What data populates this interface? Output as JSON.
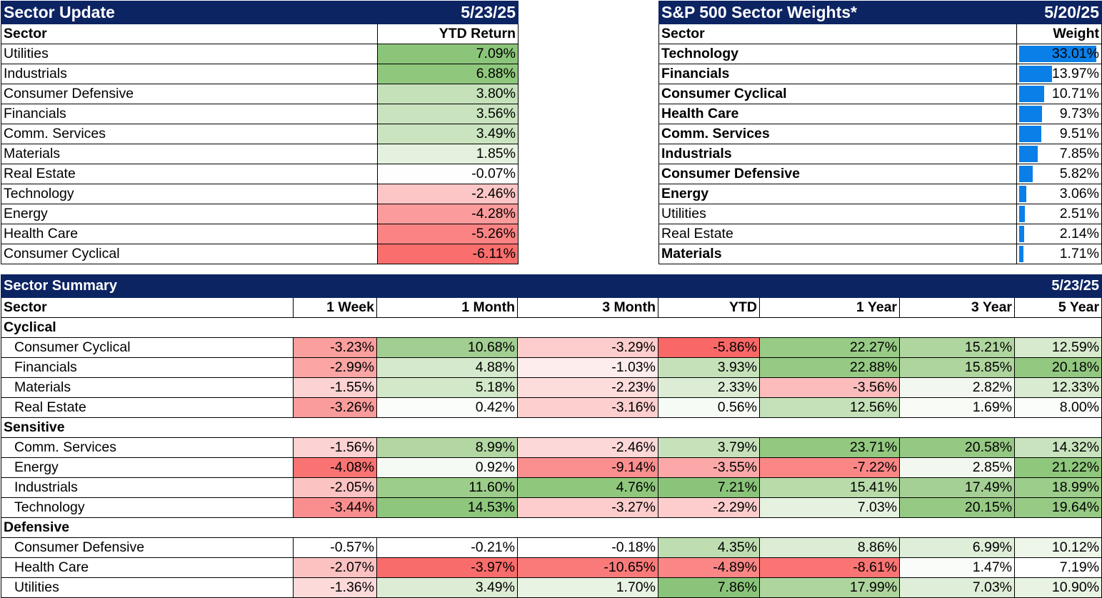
{
  "sector_update": {
    "title": "Sector Update",
    "date": "5/23/25",
    "col_sector": "Sector",
    "col_return": "YTD Return",
    "rows": [
      {
        "sector": "Utilities",
        "value": "7.09%",
        "color": "#8bc57a"
      },
      {
        "sector": "Industrials",
        "value": "6.88%",
        "color": "#8fc77d"
      },
      {
        "sector": "Consumer Defensive",
        "value": "3.80%",
        "color": "#c5e1b9"
      },
      {
        "sector": "Financials",
        "value": "3.56%",
        "color": "#c9e3be"
      },
      {
        "sector": "Comm. Services",
        "value": "3.49%",
        "color": "#cae4bf"
      },
      {
        "sector": "Materials",
        "value": "1.85%",
        "color": "#e5f1df"
      },
      {
        "sector": "Real Estate",
        "value": "-0.07%",
        "color": "#fefefe"
      },
      {
        "sector": "Technology",
        "value": "-2.46%",
        "color": "#fdc6c6"
      },
      {
        "sector": "Energy",
        "value": "-4.28%",
        "color": "#fc9b9b"
      },
      {
        "sector": "Health Care",
        "value": "-5.26%",
        "color": "#fb8383"
      },
      {
        "sector": "Consumer Cyclical",
        "value": "-6.11%",
        "color": "#fa6e6e"
      }
    ]
  },
  "sector_weights": {
    "title": "S&P 500 Sector Weights*",
    "date": "5/20/25",
    "col_sector": "Sector",
    "col_weight": "Weight",
    "bar_color": "#0a7fe8",
    "rows": [
      {
        "sector": "Technology",
        "value": "33.01%",
        "weight": 33.01,
        "bold": true
      },
      {
        "sector": "Financials",
        "value": "13.97%",
        "weight": 13.97,
        "bold": true
      },
      {
        "sector": "Consumer Cyclical",
        "value": "10.71%",
        "weight": 10.71,
        "bold": true
      },
      {
        "sector": "Health Care",
        "value": "9.73%",
        "weight": 9.73,
        "bold": true
      },
      {
        "sector": "Comm. Services",
        "value": "9.51%",
        "weight": 9.51,
        "bold": true
      },
      {
        "sector": "Industrials",
        "value": "7.85%",
        "weight": 7.85,
        "bold": true
      },
      {
        "sector": "Consumer Defensive",
        "value": "5.82%",
        "weight": 5.82,
        "bold": true
      },
      {
        "sector": "Energy",
        "value": "3.06%",
        "weight": 3.06,
        "bold": true
      },
      {
        "sector": "Utilities",
        "value": "2.51%",
        "weight": 2.51,
        "bold": false
      },
      {
        "sector": "Real Estate",
        "value": "2.14%",
        "weight": 2.14,
        "bold": false
      },
      {
        "sector": "Materials",
        "value": "1.71%",
        "weight": 1.71,
        "bold": true
      }
    ]
  },
  "sector_summary": {
    "title": "Sector Summary",
    "date": "5/23/25",
    "columns": [
      "Sector",
      "1 Week",
      "1 Month",
      "3 Month",
      "YTD",
      "1 Year",
      "3 Year",
      "5 Year"
    ],
    "groups": [
      {
        "name": "Cyclical",
        "rows": [
          {
            "sector": "Consumer Cyclical",
            "cells": [
              {
                "v": "-3.23%",
                "c": "#fb9e9e"
              },
              {
                "v": "10.68%",
                "c": "#a2cf91"
              },
              {
                "v": "-3.29%",
                "c": "#fdcdcd"
              },
              {
                "v": "-5.86%",
                "c": "#fa6767"
              },
              {
                "v": "22.27%",
                "c": "#98cb86"
              },
              {
                "v": "15.21%",
                "c": "#b0d69f"
              },
              {
                "v": "12.59%",
                "c": "#d7eacd"
              }
            ]
          },
          {
            "sector": "Financials",
            "cells": [
              {
                "v": "-2.99%",
                "c": "#fba5a5"
              },
              {
                "v": "4.88%",
                "c": "#d5e9cc"
              },
              {
                "v": "-1.03%",
                "c": "#feeded"
              },
              {
                "v": "3.93%",
                "c": "#c5e1b9"
              },
              {
                "v": "22.88%",
                "c": "#96ca84"
              },
              {
                "v": "15.85%",
                "c": "#aed59d"
              },
              {
                "v": "20.18%",
                "c": "#93c881"
              }
            ]
          },
          {
            "sector": "Materials",
            "cells": [
              {
                "v": "-1.55%",
                "c": "#fdd2d2"
              },
              {
                "v": "5.18%",
                "c": "#d2e8c8"
              },
              {
                "v": "-2.23%",
                "c": "#fddcdc"
              },
              {
                "v": "2.33%",
                "c": "#ddedd5"
              },
              {
                "v": "-3.56%",
                "c": "#fcbcbc"
              },
              {
                "v": "2.82%",
                "c": "#f2f8ef"
              },
              {
                "v": "12.33%",
                "c": "#d9ebd0"
              }
            ]
          },
          {
            "sector": "Real Estate",
            "cells": [
              {
                "v": "-3.26%",
                "c": "#fb9c9c"
              },
              {
                "v": "0.42%",
                "c": "#fbfdfa"
              },
              {
                "v": "-3.16%",
                "c": "#fdcfcf"
              },
              {
                "v": "0.56%",
                "c": "#f7fbf5"
              },
              {
                "v": "12.56%",
                "c": "#c5e1b9"
              },
              {
                "v": "1.69%",
                "c": "#f8fbf6"
              },
              {
                "v": "8.00%",
                "c": "#fbfdfa"
              }
            ]
          }
        ]
      },
      {
        "name": "Sensitive",
        "rows": [
          {
            "sector": "Comm. Services",
            "cells": [
              {
                "v": "-1.56%",
                "c": "#fdd2d2"
              },
              {
                "v": "8.99%",
                "c": "#b2d7a2"
              },
              {
                "v": "-2.46%",
                "c": "#fdd8d8"
              },
              {
                "v": "3.79%",
                "c": "#c7e2bb"
              },
              {
                "v": "23.71%",
                "c": "#93c881"
              },
              {
                "v": "20.58%",
                "c": "#95c983"
              },
              {
                "v": "14.32%",
                "c": "#c9e3be"
              }
            ]
          },
          {
            "sector": "Energy",
            "cells": [
              {
                "v": "-4.08%",
                "c": "#fa7373"
              },
              {
                "v": "0.92%",
                "c": "#f6faf4"
              },
              {
                "v": "-9.14%",
                "c": "#fb8e8e"
              },
              {
                "v": "-3.55%",
                "c": "#fca8a8"
              },
              {
                "v": "-7.22%",
                "c": "#fb8686"
              },
              {
                "v": "2.85%",
                "c": "#f2f8ef"
              },
              {
                "v": "21.22%",
                "c": "#8fc77d"
              }
            ]
          },
          {
            "sector": "Industrials",
            "cells": [
              {
                "v": "-2.05%",
                "c": "#fcc3c3"
              },
              {
                "v": "11.60%",
                "c": "#9ccd8a"
              },
              {
                "v": "4.76%",
                "c": "#8fc77d"
              },
              {
                "v": "7.21%",
                "c": "#8ac47a"
              },
              {
                "v": "15.41%",
                "c": "#b8dba9"
              },
              {
                "v": "17.49%",
                "c": "#a5d095"
              },
              {
                "v": "18.99%",
                "c": "#9ccd8a"
              }
            ]
          },
          {
            "sector": "Technology",
            "cells": [
              {
                "v": "-3.44%",
                "c": "#fa8e8e"
              },
              {
                "v": "14.53%",
                "c": "#8dc67c"
              },
              {
                "v": "-3.27%",
                "c": "#fdcdcd"
              },
              {
                "v": "-2.29%",
                "c": "#fdcdcd"
              },
              {
                "v": "7.03%",
                "c": "#e6f2e0"
              },
              {
                "v": "20.15%",
                "c": "#96ca84"
              },
              {
                "v": "19.64%",
                "c": "#97ca85"
              }
            ]
          }
        ]
      },
      {
        "name": "Defensive",
        "rows": [
          {
            "sector": "Consumer Defensive",
            "cells": [
              {
                "v": "-0.57%",
                "c": "#ffffff"
              },
              {
                "v": "-0.21%",
                "c": "#ffffff"
              },
              {
                "v": "-0.18%",
                "c": "#ffffff"
              },
              {
                "v": "4.35%",
                "c": "#bedeb1"
              },
              {
                "v": "8.86%",
                "c": "#ddedd5"
              },
              {
                "v": "6.99%",
                "c": "#dfeed8"
              },
              {
                "v": "10.12%",
                "c": "#eef6ea"
              }
            ]
          },
          {
            "sector": "Health Care",
            "cells": [
              {
                "v": "-2.07%",
                "c": "#fcc2c2"
              },
              {
                "v": "-3.97%",
                "c": "#f96c6c"
              },
              {
                "v": "-10.65%",
                "c": "#fa7a7a"
              },
              {
                "v": "-4.89%",
                "c": "#fb8686"
              },
              {
                "v": "-8.61%",
                "c": "#fa7474"
              },
              {
                "v": "1.47%",
                "c": "#fafcf9"
              },
              {
                "v": "7.19%",
                "c": "#ffffff"
              }
            ]
          },
          {
            "sector": "Utilities",
            "cells": [
              {
                "v": "-1.36%",
                "c": "#fddada"
              },
              {
                "v": "3.49%",
                "c": "#ddedd5"
              },
              {
                "v": "1.70%",
                "c": "#e8f3e3"
              },
              {
                "v": "7.86%",
                "c": "#8ac47a"
              },
              {
                "v": "17.99%",
                "c": "#aed59d"
              },
              {
                "v": "7.03%",
                "c": "#dfeed8"
              },
              {
                "v": "10.90%",
                "c": "#e8f3e3"
              }
            ]
          }
        ]
      }
    ]
  }
}
